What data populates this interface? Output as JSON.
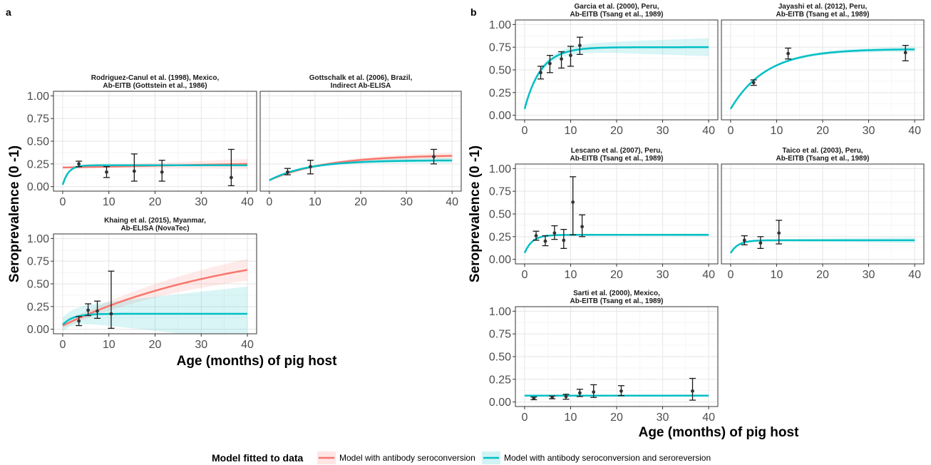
{
  "panel_labels": {
    "a": "a",
    "b": "b"
  },
  "legend": {
    "title": "Model fitted to data",
    "items": [
      {
        "label": "Model with antibody seroconversion",
        "color": "#F8766D"
      },
      {
        "label": "Model with antibody seroconversion and seroreversion",
        "color": "#00BFC4"
      }
    ]
  },
  "axes": {
    "ylabel_a": "Seroprevalence (0 -1)",
    "ylabel_b": "Seroprevalence (0 -1)",
    "xlabel_a": "Age (months) of pig host",
    "xlabel_b": "Age (months) of pig host",
    "xticks": [
      0,
      10,
      20,
      30,
      40
    ],
    "xtick_labels": [
      "0",
      "10",
      "20",
      "30",
      "40"
    ],
    "yticks": [
      0,
      0.25,
      0.5,
      0.75,
      1.0
    ],
    "ytick_labels": [
      "0.00",
      "0.25",
      "0.50",
      "0.75",
      "1.00"
    ],
    "xlim": [
      -2,
      42
    ],
    "ylim": [
      -0.05,
      1.05
    ],
    "grid": true
  },
  "chart_data": [
    {
      "type": "line",
      "title_lines": [
        "Rodriguez-Canul et al. (1998), Mexico,",
        "Ab-EITB (Gottstein et al., 1986)"
      ],
      "points": [
        {
          "x": 3.5,
          "y": 0.25,
          "lo": 0.22,
          "hi": 0.28
        },
        {
          "x": 9.5,
          "y": 0.16,
          "lo": 0.1,
          "hi": 0.22
        },
        {
          "x": 15.5,
          "y": 0.17,
          "lo": 0.06,
          "hi": 0.36
        },
        {
          "x": 21.5,
          "y": 0.16,
          "lo": 0.06,
          "hi": 0.29
        },
        {
          "x": 36.5,
          "y": 0.1,
          "lo": 0.01,
          "hi": 0.41
        }
      ],
      "series": [
        {
          "name": "Model with antibody seroconversion",
          "kind": "linear",
          "start": 0.21,
          "end": 0.25,
          "band_lo_end": 0.2,
          "band_hi_end": 0.3
        },
        {
          "name": "Model with antibody seroconversion and seroreversion",
          "kind": "sat",
          "start": 0.02,
          "plateau": 0.235,
          "rate": 0.8,
          "band": 0.012
        }
      ]
    },
    {
      "type": "line",
      "title_lines": [
        "Gottschalk et al. (2006), Brazil,",
        "Indirect Ab-ELISA"
      ],
      "points": [
        {
          "x": 4,
          "y": 0.16,
          "lo": 0.13,
          "hi": 0.2
        },
        {
          "x": 9,
          "y": 0.22,
          "lo": 0.14,
          "hi": 0.29
        },
        {
          "x": 36,
          "y": 0.33,
          "lo": 0.25,
          "hi": 0.41
        }
      ],
      "series": [
        {
          "name": "Model with antibody seroconversion",
          "kind": "sat",
          "start": 0.07,
          "plateau": 0.35,
          "rate": 0.08,
          "band": 0.035
        },
        {
          "name": "Model with antibody seroconversion and seroreversion",
          "kind": "sat",
          "start": 0.07,
          "plateau": 0.29,
          "rate": 0.12,
          "band": 0.03
        }
      ]
    },
    {
      "type": "line",
      "title_lines": [
        "Khaing et al. (2015), Myanmar,",
        "Ab-ELISA (NovaTec)"
      ],
      "points": [
        {
          "x": 3.5,
          "y": 0.09,
          "lo": 0.04,
          "hi": 0.14
        },
        {
          "x": 5.5,
          "y": 0.21,
          "lo": 0.15,
          "hi": 0.28
        },
        {
          "x": 7.5,
          "y": 0.2,
          "lo": 0.12,
          "hi": 0.31
        },
        {
          "x": 10.5,
          "y": 0.17,
          "lo": 0.01,
          "hi": 0.64
        }
      ],
      "series": [
        {
          "name": "Model with antibody seroconversion",
          "kind": "sat",
          "start": 0.04,
          "plateau": 1.0,
          "rate": 0.0255,
          "band": 0.12
        },
        {
          "name": "Model with antibody seroconversion and seroreversion",
          "kind": "sat",
          "start": 0.05,
          "plateau": 0.17,
          "rate": 0.45,
          "band": 0.3
        }
      ]
    },
    {
      "type": "line",
      "title_lines": [
        "Garcia et al. (2000), Peru,",
        "Ab-EITB (Tsang et al., 1989)"
      ],
      "points": [
        {
          "x": 3.5,
          "y": 0.47,
          "lo": 0.4,
          "hi": 0.54
        },
        {
          "x": 5.5,
          "y": 0.57,
          "lo": 0.47,
          "hi": 0.66
        },
        {
          "x": 8,
          "y": 0.62,
          "lo": 0.52,
          "hi": 0.7
        },
        {
          "x": 10,
          "y": 0.66,
          "lo": 0.54,
          "hi": 0.76
        },
        {
          "x": 12,
          "y": 0.77,
          "lo": 0.67,
          "hi": 0.86
        }
      ],
      "series": [
        {
          "name": "Model with antibody seroconversion and seroreversion",
          "kind": "sat",
          "start": 0.07,
          "plateau": 0.75,
          "rate": 0.28,
          "band": 0.1
        }
      ]
    },
    {
      "type": "line",
      "title_lines": [
        "Jayashi et al. (2012), Peru,",
        "Ab-EITB (Tsang et al., 1989)"
      ],
      "points": [
        {
          "x": 5,
          "y": 0.36,
          "lo": 0.33,
          "hi": 0.39
        },
        {
          "x": 12.5,
          "y": 0.68,
          "lo": 0.62,
          "hi": 0.74
        },
        {
          "x": 38,
          "y": 0.69,
          "lo": 0.6,
          "hi": 0.77
        }
      ],
      "series": [
        {
          "name": "Model with antibody seroconversion and seroreversion",
          "kind": "sat",
          "start": 0.07,
          "plateau": 0.73,
          "rate": 0.13,
          "band": 0.03
        }
      ]
    },
    {
      "type": "line",
      "title_lines": [
        "Lescano et al. (2007), Peru,",
        "Ab-EITB (Tsang et al., 1989)"
      ],
      "points": [
        {
          "x": 2.5,
          "y": 0.26,
          "lo": 0.21,
          "hi": 0.31
        },
        {
          "x": 4.5,
          "y": 0.2,
          "lo": 0.15,
          "hi": 0.26
        },
        {
          "x": 6.5,
          "y": 0.29,
          "lo": 0.22,
          "hi": 0.37
        },
        {
          "x": 8.5,
          "y": 0.21,
          "lo": 0.12,
          "hi": 0.33
        },
        {
          "x": 10.5,
          "y": 0.63,
          "lo": 0.27,
          "hi": 0.91
        },
        {
          "x": 12.5,
          "y": 0.36,
          "lo": 0.25,
          "hi": 0.49
        }
      ],
      "series": [
        {
          "name": "Model with antibody seroconversion and seroreversion",
          "kind": "sat",
          "start": 0.07,
          "plateau": 0.27,
          "rate": 0.6,
          "band": 0.015
        }
      ]
    },
    {
      "type": "line",
      "title_lines": [
        "Taico et al. (2003), Peru,",
        "Ab-EITB (Tsang et al., 1989)"
      ],
      "points": [
        {
          "x": 3,
          "y": 0.21,
          "lo": 0.16,
          "hi": 0.26
        },
        {
          "x": 6.5,
          "y": 0.18,
          "lo": 0.12,
          "hi": 0.25
        },
        {
          "x": 10.5,
          "y": 0.29,
          "lo": 0.17,
          "hi": 0.43
        }
      ],
      "series": [
        {
          "name": "Model with antibody seroconversion and seroreversion",
          "kind": "sat",
          "start": 0.07,
          "plateau": 0.21,
          "rate": 0.6,
          "band": 0.03
        }
      ]
    },
    {
      "type": "line",
      "title_lines": [
        "Sarti et al. (2000), Mexico,",
        "Ab-EITB (Tsang et al., 1989)"
      ],
      "points": [
        {
          "x": 2,
          "y": 0.04,
          "lo": 0.025,
          "hi": 0.055
        },
        {
          "x": 6,
          "y": 0.05,
          "lo": 0.035,
          "hi": 0.065
        },
        {
          "x": 9,
          "y": 0.06,
          "lo": 0.03,
          "hi": 0.085
        },
        {
          "x": 12,
          "y": 0.1,
          "lo": 0.06,
          "hi": 0.14
        },
        {
          "x": 15,
          "y": 0.11,
          "lo": 0.05,
          "hi": 0.19
        },
        {
          "x": 21,
          "y": 0.12,
          "lo": 0.07,
          "hi": 0.18
        },
        {
          "x": 36.5,
          "y": 0.12,
          "lo": 0.02,
          "hi": 0.26
        }
      ],
      "series": [
        {
          "name": "Model with antibody seroconversion and seroreversion",
          "kind": "flat",
          "start": 0.07,
          "plateau": 0.07,
          "rate": 1,
          "band": 0.012
        }
      ]
    }
  ]
}
